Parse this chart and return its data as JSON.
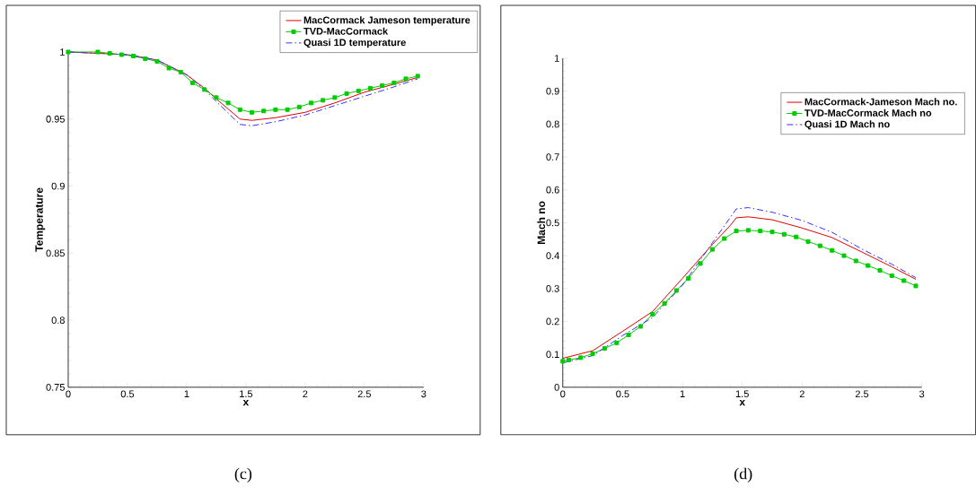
{
  "chart_data": [
    {
      "type": "line",
      "title": "(c)",
      "xlabel": "x",
      "ylabel": "Temperature",
      "xlim": [
        0,
        3
      ],
      "ylim": [
        0.75,
        1
      ],
      "xticks": [
        0,
        0.5,
        1,
        1.5,
        2,
        2.5,
        3
      ],
      "yticks": [
        0.75,
        0.8,
        0.85,
        0.9,
        0.95,
        1
      ],
      "legend": "top right",
      "series": [
        {
          "name": "MacCormack Jameson temperature",
          "color": "#e00000",
          "marker": "none",
          "line_style": "solid",
          "x": [
            0,
            0.5,
            0.75,
            1.0,
            1.15,
            1.25,
            1.45,
            1.55,
            1.75,
            2.0,
            2.25,
            2.5,
            2.75,
            2.95
          ],
          "values": [
            1.0,
            0.998,
            0.994,
            0.983,
            0.973,
            0.965,
            0.95,
            0.949,
            0.951,
            0.955,
            0.962,
            0.97,
            0.976,
            0.981
          ]
        },
        {
          "name": "TVD-MacCormack",
          "color": "#00cc00",
          "marker": "square",
          "line_style": "solid",
          "x": [
            0,
            0.25,
            0.35,
            0.45,
            0.55,
            0.65,
            0.75,
            0.85,
            0.95,
            1.05,
            1.15,
            1.25,
            1.35,
            1.45,
            1.55,
            1.65,
            1.75,
            1.85,
            1.95,
            2.05,
            2.15,
            2.25,
            2.35,
            2.45,
            2.55,
            2.65,
            2.75,
            2.85,
            2.95
          ],
          "values": [
            1.0,
            1.0,
            0.999,
            0.998,
            0.997,
            0.995,
            0.993,
            0.988,
            0.985,
            0.977,
            0.972,
            0.966,
            0.962,
            0.957,
            0.955,
            0.956,
            0.957,
            0.957,
            0.959,
            0.962,
            0.964,
            0.966,
            0.969,
            0.971,
            0.973,
            0.975,
            0.977,
            0.98,
            0.982
          ]
        },
        {
          "name": "Quasi 1D temperature",
          "color": "#3333ff",
          "marker": "none",
          "line_style": "dashdot",
          "x": [
            0,
            0.5,
            0.75,
            1.0,
            1.15,
            1.25,
            1.45,
            1.55,
            1.75,
            2.0,
            2.25,
            2.5,
            2.75,
            2.95
          ],
          "values": [
            1.0,
            0.998,
            0.994,
            0.983,
            0.972,
            0.963,
            0.946,
            0.945,
            0.948,
            0.953,
            0.96,
            0.967,
            0.974,
            0.98
          ]
        }
      ]
    },
    {
      "type": "line",
      "title": "(d)",
      "xlabel": "x",
      "ylabel": "Mach no",
      "xlim": [
        0,
        3
      ],
      "ylim": [
        0,
        1
      ],
      "xticks": [
        0,
        0.5,
        1,
        1.5,
        2,
        2.5,
        3
      ],
      "yticks": [
        0,
        0.1,
        0.2,
        0.3,
        0.4,
        0.5,
        0.6,
        0.7,
        0.8,
        0.9,
        1
      ],
      "legend": "top right",
      "series": [
        {
          "name": "MacCormack-Jameson Mach no.",
          "color": "#e00000",
          "marker": "none",
          "line_style": "solid",
          "x": [
            0,
            0.25,
            0.5,
            0.75,
            1.0,
            1.25,
            1.4,
            1.45,
            1.55,
            1.75,
            2.0,
            2.25,
            2.5,
            2.75,
            2.95
          ],
          "values": [
            0.088,
            0.111,
            0.17,
            0.23,
            0.331,
            0.434,
            0.492,
            0.515,
            0.518,
            0.509,
            0.484,
            0.455,
            0.411,
            0.366,
            0.328
          ]
        },
        {
          "name": "TVD-MacCormack Mach no",
          "color": "#00cc00",
          "marker": "square",
          "line_style": "solid",
          "x": [
            0,
            0.05,
            0.15,
            0.25,
            0.35,
            0.45,
            0.55,
            0.65,
            0.75,
            0.85,
            0.95,
            1.05,
            1.15,
            1.25,
            1.35,
            1.45,
            1.55,
            1.65,
            1.75,
            1.85,
            1.95,
            2.05,
            2.15,
            2.25,
            2.35,
            2.45,
            2.55,
            2.65,
            2.75,
            2.85,
            2.95
          ],
          "values": [
            0.079,
            0.083,
            0.09,
            0.102,
            0.118,
            0.135,
            0.159,
            0.185,
            0.222,
            0.255,
            0.294,
            0.331,
            0.376,
            0.419,
            0.452,
            0.475,
            0.477,
            0.475,
            0.472,
            0.465,
            0.457,
            0.443,
            0.43,
            0.416,
            0.4,
            0.384,
            0.37,
            0.355,
            0.339,
            0.324,
            0.308
          ]
        },
        {
          "name": "Quasi 1D Mach no",
          "color": "#3333ff",
          "marker": "none",
          "line_style": "dashdot",
          "x": [
            0,
            0.25,
            0.5,
            0.75,
            1.0,
            1.25,
            1.45,
            1.55,
            1.75,
            2.0,
            2.25,
            2.5,
            2.75,
            2.95
          ],
          "values": [
            0.074,
            0.096,
            0.157,
            0.212,
            0.31,
            0.439,
            0.542,
            0.546,
            0.532,
            0.507,
            0.471,
            0.42,
            0.374,
            0.333
          ]
        }
      ]
    }
  ]
}
